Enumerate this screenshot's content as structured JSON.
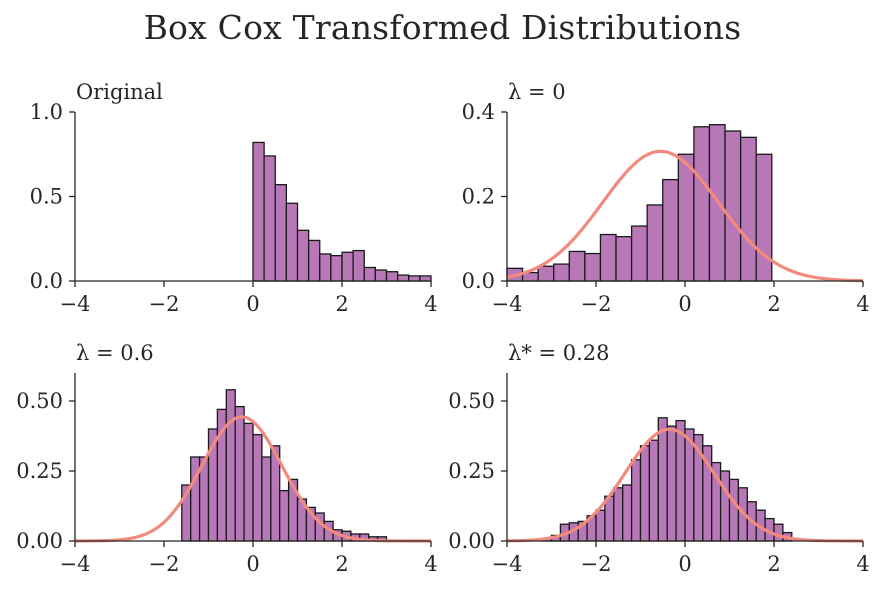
{
  "suptitle": "Box Cox Transformed Distributions",
  "colors": {
    "bar_fill": "#b878b8",
    "bar_edge": "#1a1a1a",
    "curve": "#f28b7e",
    "axis": "#262626"
  },
  "chart_data": [
    {
      "type": "bar",
      "title": "Original",
      "xlim": [
        -4,
        4
      ],
      "ylim": [
        0,
        1.0
      ],
      "xticks": [
        -4,
        -2,
        0,
        2,
        4
      ],
      "xtick_labels": [
        "−4",
        "−2",
        "0",
        "2",
        "4"
      ],
      "yticks": [
        0,
        0.5,
        1.0
      ],
      "ytick_labels": [
        "0.0",
        "0.5",
        "1.0"
      ],
      "bin_edges": [
        0.0,
        0.25,
        0.5,
        0.75,
        1.0,
        1.25,
        1.5,
        1.75,
        2.0,
        2.25,
        2.5,
        2.75,
        3.0,
        3.25,
        3.5,
        3.75,
        4.0
      ],
      "values": [
        0.82,
        0.74,
        0.57,
        0.46,
        0.3,
        0.24,
        0.16,
        0.15,
        0.17,
        0.18,
        0.08,
        0.065,
        0.055,
        0.035,
        0.03,
        0.03
      ],
      "curve": null
    },
    {
      "type": "bar",
      "title": "λ = 0",
      "xlim": [
        -4,
        4
      ],
      "ylim": [
        0,
        0.4
      ],
      "xticks": [
        -4,
        -2,
        0,
        2,
        4
      ],
      "xtick_labels": [
        "−4",
        "−2",
        "0",
        "2",
        "4"
      ],
      "yticks": [
        0,
        0.2,
        0.4
      ],
      "ytick_labels": [
        "0.0",
        "0.2",
        "0.4"
      ],
      "bin_edges": [
        -4.0,
        -3.65,
        -3.3,
        -2.95,
        -2.6,
        -2.25,
        -1.9,
        -1.55,
        -1.2,
        -0.85,
        -0.5,
        -0.15,
        0.2,
        0.55,
        0.9,
        1.25,
        1.6,
        1.95
      ],
      "values": [
        0.03,
        0.02,
        0.035,
        0.04,
        0.07,
        0.065,
        0.11,
        0.105,
        0.13,
        0.18,
        0.24,
        0.3,
        0.365,
        0.37,
        0.355,
        0.34,
        0.3
      ],
      "curve": {
        "mu": -0.55,
        "sigma": 1.3
      }
    },
    {
      "type": "bar",
      "title": "λ = 0.6",
      "xlim": [
        -4,
        4
      ],
      "ylim": [
        0,
        0.6
      ],
      "xticks": [
        -4,
        -2,
        0,
        2,
        4
      ],
      "xtick_labels": [
        "−4",
        "−2",
        "0",
        "2",
        "4"
      ],
      "yticks": [
        0,
        0.25,
        0.5
      ],
      "ytick_labels": [
        "0.00",
        "0.25",
        "0.50"
      ],
      "bin_edges": [
        -1.6,
        -1.4,
        -1.2,
        -1.0,
        -0.8,
        -0.6,
        -0.4,
        -0.2,
        0.0,
        0.2,
        0.4,
        0.6,
        0.8,
        1.0,
        1.2,
        1.4,
        1.6,
        1.8,
        2.0,
        2.2,
        2.4,
        2.6,
        2.8,
        3.0
      ],
      "values": [
        0.2,
        0.3,
        0.3,
        0.4,
        0.47,
        0.54,
        0.48,
        0.42,
        0.38,
        0.3,
        0.34,
        0.18,
        0.22,
        0.15,
        0.12,
        0.1,
        0.07,
        0.04,
        0.035,
        0.025,
        0.025,
        0.015,
        0.015
      ],
      "curve": {
        "mu": -0.25,
        "sigma": 0.9
      }
    },
    {
      "type": "bar",
      "title": "λ* = 0.28",
      "xlim": [
        -4,
        4
      ],
      "ylim": [
        0,
        0.6
      ],
      "xticks": [
        -4,
        -2,
        0,
        2,
        4
      ],
      "xtick_labels": [
        "−4",
        "−2",
        "0",
        "2",
        "4"
      ],
      "yticks": [
        0,
        0.25,
        0.5
      ],
      "ytick_labels": [
        "0.00",
        "0.25",
        "0.50"
      ],
      "bin_edges": [
        -3.2,
        -3.0,
        -2.8,
        -2.6,
        -2.4,
        -2.2,
        -2.0,
        -1.8,
        -1.6,
        -1.4,
        -1.2,
        -1.0,
        -0.8,
        -0.6,
        -0.4,
        -0.2,
        0.0,
        0.2,
        0.4,
        0.6,
        0.8,
        1.0,
        1.2,
        1.4,
        1.6,
        1.8,
        2.0,
        2.2,
        2.4
      ],
      "values": [
        0.01,
        0.02,
        0.06,
        0.065,
        0.07,
        0.09,
        0.11,
        0.16,
        0.19,
        0.2,
        0.29,
        0.34,
        0.36,
        0.44,
        0.41,
        0.43,
        0.4,
        0.38,
        0.34,
        0.28,
        0.25,
        0.22,
        0.19,
        0.14,
        0.11,
        0.08,
        0.06,
        0.03
      ],
      "curve": {
        "mu": -0.35,
        "sigma": 1.0
      }
    }
  ]
}
